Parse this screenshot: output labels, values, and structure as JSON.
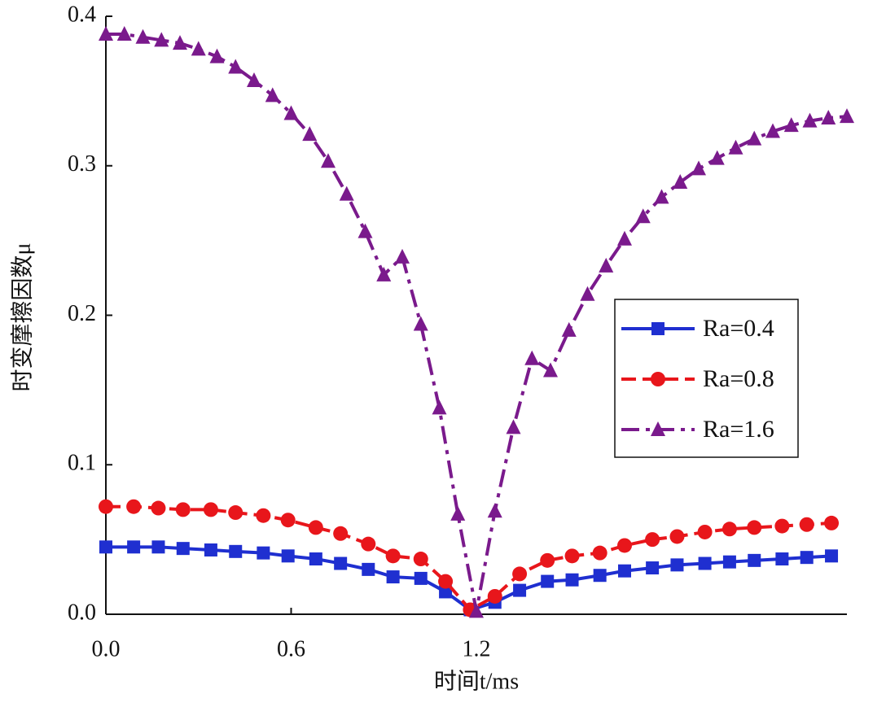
{
  "chart_data": {
    "type": "line",
    "xlabel": "时间t/ms",
    "ylabel": "时变摩擦因数μ",
    "xlim": [
      0,
      2.4
    ],
    "ylim": [
      0,
      0.4
    ],
    "xticks": [
      {
        "value": 0,
        "label": "0.0"
      },
      0.6,
      1.2
    ],
    "yticks": [
      {
        "value": 0,
        "label": "0.0"
      },
      0.1,
      0.2,
      0.3,
      0.4
    ],
    "legend": "right",
    "series": [
      {
        "name": "Ra=0.4",
        "color": "#1f2fd0",
        "line_style": "solid",
        "marker": "square",
        "x": [
          0,
          0.09,
          0.17,
          0.25,
          0.34,
          0.42,
          0.51,
          0.59,
          0.68,
          0.76,
          0.85,
          0.93,
          1.02,
          1.1,
          1.18,
          1.26,
          1.34,
          1.43,
          1.51,
          1.6,
          1.68,
          1.77,
          1.85,
          1.94,
          2.02,
          2.1,
          2.19,
          2.27,
          2.35
        ],
        "values": [
          0.045,
          0.045,
          0.045,
          0.044,
          0.043,
          0.042,
          0.041,
          0.039,
          0.037,
          0.034,
          0.03,
          0.025,
          0.024,
          0.015,
          0.003,
          0.008,
          0.016,
          0.022,
          0.023,
          0.026,
          0.029,
          0.031,
          0.033,
          0.034,
          0.035,
          0.036,
          0.037,
          0.038,
          0.039
        ]
      },
      {
        "name": "Ra=0.8",
        "color": "#e8161b",
        "line_style": "dashed",
        "marker": "circle",
        "x": [
          0,
          0.09,
          0.17,
          0.25,
          0.34,
          0.42,
          0.51,
          0.59,
          0.68,
          0.76,
          0.85,
          0.93,
          1.02,
          1.1,
          1.18,
          1.26,
          1.34,
          1.43,
          1.51,
          1.6,
          1.68,
          1.77,
          1.85,
          1.94,
          2.02,
          2.1,
          2.19,
          2.27,
          2.35
        ],
        "values": [
          0.072,
          0.072,
          0.071,
          0.07,
          0.07,
          0.068,
          0.066,
          0.063,
          0.058,
          0.054,
          0.047,
          0.039,
          0.037,
          0.022,
          0.003,
          0.012,
          0.027,
          0.036,
          0.039,
          0.041,
          0.046,
          0.05,
          0.052,
          0.055,
          0.057,
          0.058,
          0.059,
          0.06,
          0.061
        ]
      },
      {
        "name": "Ra=1.6",
        "color": "#7a1a8c",
        "line_style": "dashdot",
        "marker": "triangle",
        "x": [
          0,
          0.06,
          0.12,
          0.18,
          0.24,
          0.3,
          0.36,
          0.42,
          0.48,
          0.54,
          0.6,
          0.66,
          0.72,
          0.78,
          0.84,
          0.9,
          0.96,
          1.02,
          1.08,
          1.14,
          1.2,
          1.26,
          1.32,
          1.38,
          1.44,
          1.5,
          1.56,
          1.62,
          1.68,
          1.74,
          1.8,
          1.86,
          1.92,
          1.98,
          2.04,
          2.1,
          2.16,
          2.22,
          2.28,
          2.34,
          2.4
        ],
        "values": [
          0.388,
          0.388,
          0.386,
          0.384,
          0.382,
          0.378,
          0.373,
          0.366,
          0.357,
          0.347,
          0.335,
          0.321,
          0.303,
          0.281,
          0.256,
          0.227,
          0.239,
          0.194,
          0.138,
          0.067,
          0.002,
          0.069,
          0.125,
          0.171,
          0.163,
          0.19,
          0.214,
          0.233,
          0.251,
          0.266,
          0.279,
          0.289,
          0.298,
          0.305,
          0.312,
          0.318,
          0.323,
          0.327,
          0.33,
          0.332,
          0.333
        ]
      }
    ]
  }
}
